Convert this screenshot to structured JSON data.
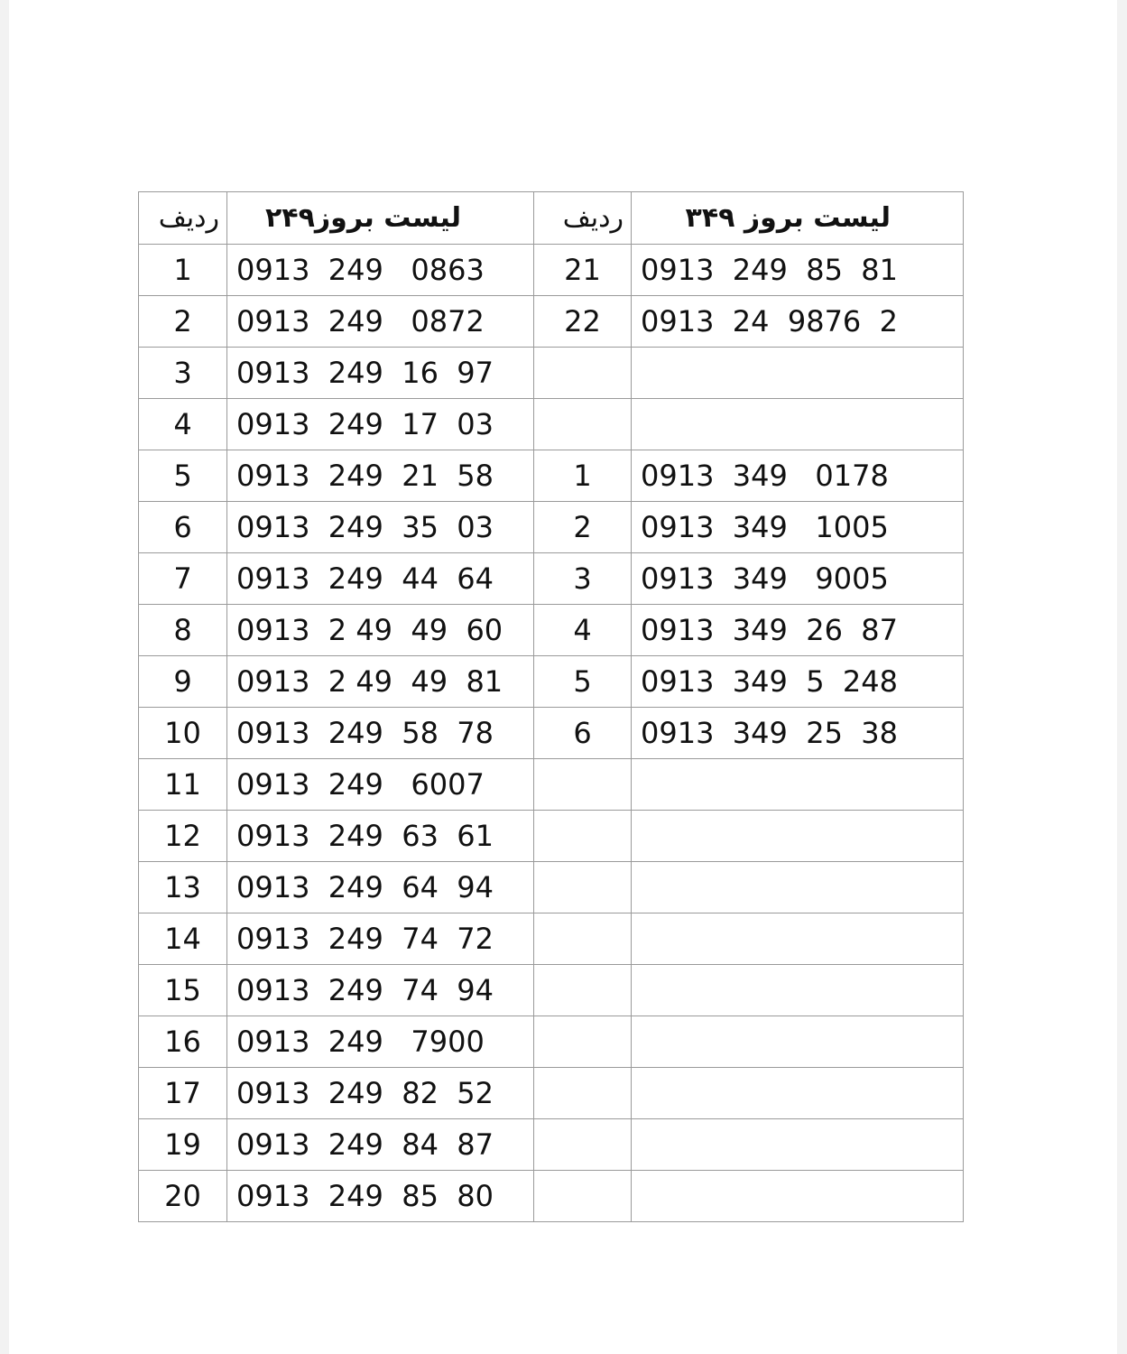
{
  "headers": {
    "left_row_label": "ردیف",
    "left_title": "لیست بروز۲۴۹",
    "right_row_label": "ردیف",
    "right_title": "لیست بروز ۳۴۹"
  },
  "rows": [
    {
      "li": "1",
      "ln": "0913  249   0863",
      "ri": "21",
      "rn": "0913  249  85  81"
    },
    {
      "li": "2",
      "ln": "0913  249   0872",
      "ri": "22",
      "rn": "0913  24  9876  2"
    },
    {
      "li": "3",
      "ln": "0913  249  16  97",
      "ri": "",
      "rn": ""
    },
    {
      "li": "4",
      "ln": "0913  249  17  03",
      "ri": "",
      "rn": ""
    },
    {
      "li": "5",
      "ln": "0913  249  21  58",
      "ri": "1",
      "rn": "0913  349   0178"
    },
    {
      "li": "6",
      "ln": "0913  249  35  03",
      "ri": "2",
      "rn": "0913  349   1005"
    },
    {
      "li": "7",
      "ln": "0913  249  44  64",
      "ri": "3",
      "rn": "0913  349   9005"
    },
    {
      "li": "8",
      "ln": "0913  2 49  49  60",
      "ri": "4",
      "rn": "0913  349  26  87"
    },
    {
      "li": "9",
      "ln": "0913  2 49  49  81",
      "ri": "5",
      "rn": "0913  349  5  248"
    },
    {
      "li": "10",
      "ln": "0913  249  58  78",
      "ri": "6",
      "rn": "0913  349  25  38"
    },
    {
      "li": "11",
      "ln": "0913  249   6007",
      "ri": "",
      "rn": ""
    },
    {
      "li": "12",
      "ln": "0913  249  63  61",
      "ri": "",
      "rn": ""
    },
    {
      "li": "13",
      "ln": "0913  249  64  94",
      "ri": "",
      "rn": ""
    },
    {
      "li": "14",
      "ln": "0913  249  74  72",
      "ri": "",
      "rn": ""
    },
    {
      "li": "15",
      "ln": "0913  249  74  94",
      "ri": "",
      "rn": ""
    },
    {
      "li": "16",
      "ln": "0913  249   7900",
      "ri": "",
      "rn": ""
    },
    {
      "li": "17",
      "ln": "0913  249  82  52",
      "ri": "",
      "rn": ""
    },
    {
      "li": "19",
      "ln": "0913  249  84  87",
      "ri": "",
      "rn": ""
    },
    {
      "li": "20",
      "ln": "0913  249  85  80",
      "ri": "",
      "rn": ""
    }
  ]
}
